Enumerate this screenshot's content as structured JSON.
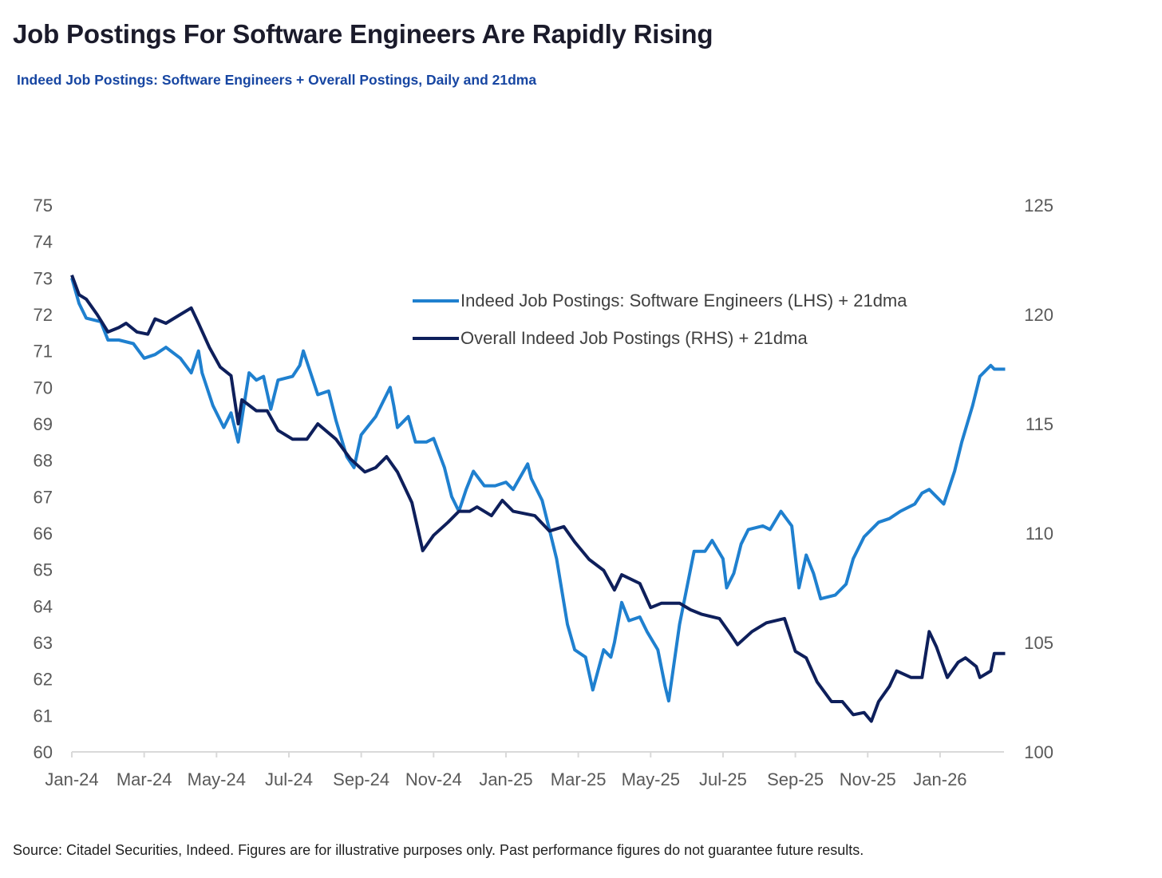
{
  "title": "Job Postings For Software Engineers Are Rapidly Rising",
  "subtitle": "Indeed Job Postings: Software Engineers + Overall Postings, Daily and 21dma",
  "source": "Source: Citadel Securities, Indeed. Figures are for illustrative purposes only. Past performance figures do not guarantee future results.",
  "colors": {
    "software": "#1f80cf",
    "overall": "#0e1f5b",
    "axis": "#d9d9d9"
  },
  "chart_data": {
    "type": "line",
    "title": "Indeed Job Postings: Software Engineers + Overall Postings, Daily and 21dma",
    "x_unit": "months since Jan-24",
    "xlim": [
      0,
      25.8
    ],
    "x_ticks": [
      {
        "x": 0,
        "label": "Jan-24"
      },
      {
        "x": 2,
        "label": "Mar-24"
      },
      {
        "x": 4,
        "label": "May-24"
      },
      {
        "x": 6,
        "label": "Jul-24"
      },
      {
        "x": 8,
        "label": "Sep-24"
      },
      {
        "x": 10,
        "label": "Nov-24"
      },
      {
        "x": 12,
        "label": "Jan-25"
      },
      {
        "x": 14,
        "label": "Mar-25"
      },
      {
        "x": 16,
        "label": "May-25"
      },
      {
        "x": 18,
        "label": "Jul-25"
      },
      {
        "x": 20,
        "label": "Sep-25"
      },
      {
        "x": 22,
        "label": "Nov-25"
      },
      {
        "x": 24,
        "label": "Jan-26"
      }
    ],
    "y_left": {
      "lim": [
        60,
        75
      ],
      "ticks": [
        "60",
        "61",
        "62",
        "63",
        "64",
        "65",
        "66",
        "67",
        "68",
        "69",
        "70",
        "71",
        "72",
        "73",
        "74",
        "75"
      ]
    },
    "y_right": {
      "lim": [
        100,
        125
      ],
      "ticks": [
        "100",
        "105",
        "110",
        "115",
        "120",
        "125"
      ]
    },
    "legend": {
      "placement": "top-center",
      "entries": [
        "Indeed Job Postings: Software Engineers (LHS) + 21dma",
        "Overall Indeed Job Postings (RHS) + 21dma"
      ]
    },
    "series": [
      {
        "name": "Indeed Job Postings: Software Engineers (LHS)",
        "axis": "left",
        "points": [
          [
            0,
            73.0
          ],
          [
            0.2,
            72.3
          ],
          [
            0.4,
            71.9
          ],
          [
            0.8,
            71.8
          ],
          [
            1.0,
            71.3
          ],
          [
            1.3,
            71.3
          ],
          [
            1.7,
            71.2
          ],
          [
            2.0,
            70.8
          ],
          [
            2.3,
            70.9
          ],
          [
            2.6,
            71.1
          ],
          [
            3.0,
            70.8
          ],
          [
            3.3,
            70.4
          ],
          [
            3.5,
            71.0
          ],
          [
            3.6,
            70.4
          ],
          [
            3.9,
            69.5
          ],
          [
            4.2,
            68.9
          ],
          [
            4.4,
            69.3
          ],
          [
            4.6,
            68.5
          ],
          [
            4.9,
            70.4
          ],
          [
            5.1,
            70.2
          ],
          [
            5.3,
            70.3
          ],
          [
            5.5,
            69.4
          ],
          [
            5.7,
            70.2
          ],
          [
            6.1,
            70.3
          ],
          [
            6.3,
            70.6
          ],
          [
            6.4,
            71.0
          ],
          [
            6.6,
            70.4
          ],
          [
            6.8,
            69.8
          ],
          [
            7.1,
            69.9
          ],
          [
            7.3,
            69.1
          ],
          [
            7.6,
            68.1
          ],
          [
            7.8,
            67.8
          ],
          [
            8.0,
            68.7
          ],
          [
            8.4,
            69.2
          ],
          [
            8.6,
            69.6
          ],
          [
            8.8,
            70.0
          ],
          [
            8.9,
            69.5
          ],
          [
            9.0,
            68.9
          ],
          [
            9.3,
            69.2
          ],
          [
            9.5,
            68.5
          ],
          [
            9.8,
            68.5
          ],
          [
            10.0,
            68.6
          ],
          [
            10.3,
            67.8
          ],
          [
            10.5,
            67.0
          ],
          [
            10.7,
            66.6
          ],
          [
            10.9,
            67.2
          ],
          [
            11.1,
            67.7
          ],
          [
            11.4,
            67.3
          ],
          [
            11.7,
            67.3
          ],
          [
            12.0,
            67.4
          ],
          [
            12.2,
            67.2
          ],
          [
            12.6,
            67.9
          ],
          [
            12.7,
            67.5
          ],
          [
            13.0,
            66.9
          ],
          [
            13.2,
            66.1
          ],
          [
            13.4,
            65.3
          ],
          [
            13.7,
            63.5
          ],
          [
            13.9,
            62.8
          ],
          [
            14.2,
            62.6
          ],
          [
            14.4,
            61.7
          ],
          [
            14.7,
            62.8
          ],
          [
            14.9,
            62.6
          ],
          [
            15.0,
            63.0
          ],
          [
            15.2,
            64.1
          ],
          [
            15.4,
            63.6
          ],
          [
            15.7,
            63.7
          ],
          [
            15.9,
            63.3
          ],
          [
            16.2,
            62.8
          ],
          [
            16.4,
            61.8
          ],
          [
            16.5,
            61.4
          ],
          [
            16.8,
            63.5
          ],
          [
            17.0,
            64.5
          ],
          [
            17.2,
            65.5
          ],
          [
            17.5,
            65.5
          ],
          [
            17.7,
            65.8
          ],
          [
            18.0,
            65.3
          ],
          [
            18.1,
            64.5
          ],
          [
            18.3,
            64.9
          ],
          [
            18.5,
            65.7
          ],
          [
            18.7,
            66.1
          ],
          [
            19.1,
            66.2
          ],
          [
            19.3,
            66.1
          ],
          [
            19.6,
            66.6
          ],
          [
            19.9,
            66.2
          ],
          [
            20.1,
            64.5
          ],
          [
            20.3,
            65.4
          ],
          [
            20.5,
            64.9
          ],
          [
            20.7,
            64.2
          ],
          [
            21.1,
            64.3
          ],
          [
            21.4,
            64.6
          ],
          [
            21.6,
            65.3
          ],
          [
            21.9,
            65.9
          ],
          [
            22.3,
            66.3
          ],
          [
            22.6,
            66.4
          ],
          [
            22.9,
            66.6
          ],
          [
            23.3,
            66.8
          ],
          [
            23.5,
            67.1
          ],
          [
            23.7,
            67.2
          ],
          [
            23.9,
            67.0
          ],
          [
            24.1,
            66.8
          ],
          [
            24.4,
            67.7
          ],
          [
            24.6,
            68.5
          ],
          [
            24.9,
            69.5
          ],
          [
            25.1,
            70.3
          ],
          [
            25.4,
            70.6
          ],
          [
            25.5,
            70.5
          ],
          [
            25.8,
            70.5
          ]
        ]
      },
      {
        "name": "Overall Indeed Job Postings (RHS)",
        "axis": "right",
        "points": [
          [
            0,
            121.8
          ],
          [
            0.2,
            120.9
          ],
          [
            0.4,
            120.7
          ],
          [
            0.7,
            120.0
          ],
          [
            1.0,
            119.2
          ],
          [
            1.3,
            119.4
          ],
          [
            1.5,
            119.6
          ],
          [
            1.8,
            119.2
          ],
          [
            2.1,
            119.1
          ],
          [
            2.3,
            119.8
          ],
          [
            2.6,
            119.6
          ],
          [
            3.0,
            120.0
          ],
          [
            3.3,
            120.3
          ],
          [
            3.5,
            119.6
          ],
          [
            3.8,
            118.5
          ],
          [
            4.1,
            117.6
          ],
          [
            4.4,
            117.2
          ],
          [
            4.6,
            115.0
          ],
          [
            4.7,
            116.1
          ],
          [
            5.1,
            115.6
          ],
          [
            5.4,
            115.6
          ],
          [
            5.7,
            114.7
          ],
          [
            6.1,
            114.3
          ],
          [
            6.5,
            114.3
          ],
          [
            6.8,
            115.0
          ],
          [
            7.3,
            114.3
          ],
          [
            7.7,
            113.4
          ],
          [
            8.1,
            112.8
          ],
          [
            8.4,
            113.0
          ],
          [
            8.7,
            113.5
          ],
          [
            9.0,
            112.8
          ],
          [
            9.4,
            111.4
          ],
          [
            9.7,
            109.2
          ],
          [
            10.0,
            109.9
          ],
          [
            10.4,
            110.5
          ],
          [
            10.7,
            111.0
          ],
          [
            11.0,
            111.0
          ],
          [
            11.2,
            111.2
          ],
          [
            11.6,
            110.8
          ],
          [
            11.9,
            111.5
          ],
          [
            12.2,
            111.0
          ],
          [
            12.8,
            110.8
          ],
          [
            13.2,
            110.1
          ],
          [
            13.6,
            110.3
          ],
          [
            13.9,
            109.6
          ],
          [
            14.3,
            108.8
          ],
          [
            14.7,
            108.3
          ],
          [
            15.0,
            107.4
          ],
          [
            15.2,
            108.1
          ],
          [
            15.7,
            107.7
          ],
          [
            16.0,
            106.6
          ],
          [
            16.3,
            106.8
          ],
          [
            16.8,
            106.8
          ],
          [
            17.1,
            106.5
          ],
          [
            17.4,
            106.3
          ],
          [
            17.9,
            106.1
          ],
          [
            18.2,
            105.4
          ],
          [
            18.4,
            104.9
          ],
          [
            18.8,
            105.5
          ],
          [
            19.2,
            105.9
          ],
          [
            19.7,
            106.1
          ],
          [
            20.0,
            104.6
          ],
          [
            20.3,
            104.3
          ],
          [
            20.6,
            103.2
          ],
          [
            21.0,
            102.3
          ],
          [
            21.3,
            102.3
          ],
          [
            21.6,
            101.7
          ],
          [
            21.9,
            101.8
          ],
          [
            22.1,
            101.4
          ],
          [
            22.3,
            102.3
          ],
          [
            22.6,
            103.0
          ],
          [
            22.8,
            103.7
          ],
          [
            23.2,
            103.4
          ],
          [
            23.5,
            103.4
          ],
          [
            23.7,
            105.5
          ],
          [
            23.9,
            104.8
          ],
          [
            24.2,
            103.4
          ],
          [
            24.5,
            104.1
          ],
          [
            24.7,
            104.3
          ],
          [
            25.0,
            103.9
          ],
          [
            25.1,
            103.4
          ],
          [
            25.4,
            103.7
          ],
          [
            25.5,
            104.5
          ],
          [
            25.8,
            104.5
          ]
        ]
      }
    ],
    "moving_average_window_days": 21
  }
}
